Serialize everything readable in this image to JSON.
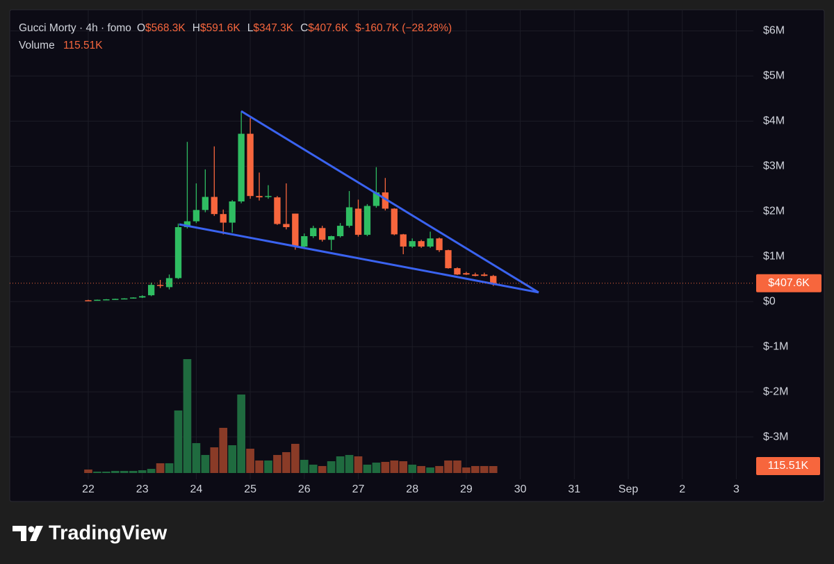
{
  "chart_data": {
    "type": "candlestick",
    "title": "Gucci Morty · 4h · fomo",
    "ohlc_header": [
      {
        "label": "O",
        "text": "$568.3K"
      },
      {
        "label": "H",
        "text": "$591.6K"
      },
      {
        "label": "L",
        "text": "$347.3K"
      },
      {
        "label": "C",
        "text": "$407.6K"
      }
    ],
    "change_text": "$-160.7K (−28.28%)",
    "volume_title": "Volume",
    "volume_text": "115.51K",
    "price_label": "$407.6K",
    "price": 407600,
    "volume_label": "115.51K",
    "up_color": "#2fbd62",
    "down_color": "#f7663d",
    "volume_up_color": "#1f6b3f",
    "volume_down_color": "#8a3b27",
    "trendline_color": "#3a63f0",
    "grid": true,
    "xticks": [
      "22",
      "23",
      "24",
      "25",
      "26",
      "27",
      "28",
      "29",
      "30",
      "31",
      "Sep",
      "2",
      "3"
    ],
    "ylim": [
      -3800000,
      6300000
    ],
    "yticks": [
      {
        "value": 6000000,
        "label": "$6M"
      },
      {
        "value": 5000000,
        "label": "$5M"
      },
      {
        "value": 4000000,
        "label": "$4M"
      },
      {
        "value": 3000000,
        "label": "$3M"
      },
      {
        "value": 2000000,
        "label": "$2M"
      },
      {
        "value": 1000000,
        "label": "$1M"
      },
      {
        "value": 0,
        "label": "$0"
      },
      {
        "value": -1000000,
        "label": "$-1M"
      },
      {
        "value": -2000000,
        "label": "$-2M"
      },
      {
        "value": -3000000,
        "label": "$-3M"
      }
    ],
    "open": [
      30000,
      25000,
      40000,
      50000,
      60000,
      70000,
      90000,
      140000,
      370000,
      320000,
      520000,
      1650000,
      1780000,
      2030000,
      2320000,
      1940000,
      1750000,
      2220000,
      3720000,
      2340000,
      2320000,
      2310000,
      1720000,
      1950000,
      1220000,
      1450000,
      1630000,
      1370000,
      1450000,
      1680000,
      2060000,
      1480000,
      2120000,
      2420000,
      2060000,
      1490000,
      1220000,
      1340000,
      1220000,
      1400000,
      1140000,
      740000,
      630000,
      600000,
      600000,
      568300
    ],
    "high": [
      40000,
      45000,
      55000,
      65000,
      75000,
      95000,
      140000,
      420000,
      480000,
      600000,
      1730000,
      3540000,
      2620000,
      2930000,
      3440000,
      2040000,
      2250000,
      4220000,
      4070000,
      2860000,
      2580000,
      2340000,
      2620000,
      1950000,
      1510000,
      1680000,
      1680000,
      1460000,
      1740000,
      2450000,
      2260000,
      2160000,
      2980000,
      2740000,
      2070000,
      1500000,
      1400000,
      1370000,
      1550000,
      1420000,
      1150000,
      760000,
      660000,
      640000,
      640000,
      591600
    ],
    "low": [
      20000,
      20000,
      35000,
      45000,
      55000,
      65000,
      80000,
      120000,
      300000,
      270000,
      500000,
      1620000,
      1740000,
      1980000,
      1900000,
      1490000,
      1530000,
      2180000,
      2280000,
      2240000,
      2280000,
      1700000,
      1600000,
      1150000,
      1180000,
      1410000,
      1330000,
      1140000,
      1420000,
      1640000,
      1440000,
      1450000,
      2080000,
      2020000,
      1470000,
      1050000,
      1190000,
      1190000,
      1190000,
      1100000,
      730000,
      590000,
      590000,
      560000,
      560000,
      347300
    ],
    "close": [
      25000,
      40000,
      50000,
      60000,
      70000,
      90000,
      120000,
      370000,
      350000,
      520000,
      1650000,
      1780000,
      2030000,
      2320000,
      1940000,
      1750000,
      2220000,
      3720000,
      2340000,
      2310000,
      2340000,
      1720000,
      1650000,
      1220000,
      1450000,
      1630000,
      1370000,
      1450000,
      1680000,
      2090000,
      1480000,
      2120000,
      2420000,
      2060000,
      1490000,
      1220000,
      1340000,
      1220000,
      1400000,
      1140000,
      740000,
      600000,
      600000,
      570000,
      570000,
      407600
    ],
    "volumes": [
      58000,
      23000,
      23000,
      35000,
      35000,
      35000,
      46000,
      69000,
      162000,
      162000,
      1040000,
      1894000,
      497000,
      300000,
      427000,
      751000,
      462000,
      1305000,
      404000,
      208000,
      208000,
      300000,
      347000,
      485000,
      219000,
      139000,
      116000,
      196000,
      277000,
      300000,
      277000,
      139000,
      173000,
      185000,
      208000,
      196000,
      139000,
      116000,
      92000,
      116000,
      208000,
      208000,
      92000,
      116000,
      116000,
      115510
    ]
  }
}
